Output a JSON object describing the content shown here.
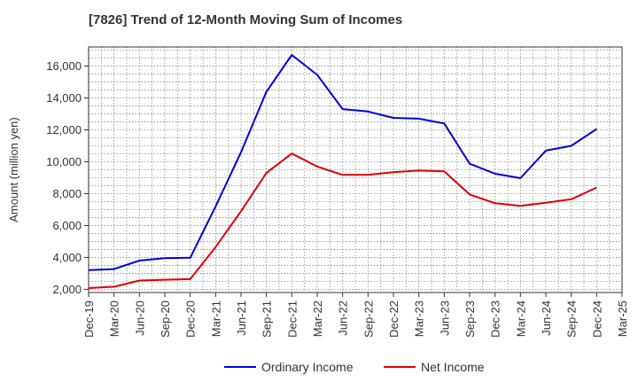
{
  "chart_data": {
    "type": "line",
    "title": "[7826]  Trend of 12-Month Moving Sum of Incomes",
    "xlabel": "",
    "ylabel": "Amount (million yen)",
    "ylim": [
      1800,
      17200
    ],
    "yticks": [
      2000,
      4000,
      6000,
      8000,
      10000,
      12000,
      14000,
      16000
    ],
    "ytick_labels": [
      "2,000",
      "4,000",
      "6,000",
      "8,000",
      "10,000",
      "12,000",
      "14,000",
      "16,000"
    ],
    "categories": [
      "Dec-19",
      "Mar-20",
      "Jun-20",
      "Sep-20",
      "Dec-20",
      "Mar-21",
      "Jun-21",
      "Sep-21",
      "Dec-21",
      "Mar-22",
      "Jun-22",
      "Sep-22",
      "Dec-22",
      "Mar-23",
      "Jun-23",
      "Sep-23",
      "Dec-23",
      "Mar-24",
      "Jun-24",
      "Sep-24",
      "Dec-24",
      "Mar-25"
    ],
    "grid": true,
    "legend_position": "bottom",
    "series": [
      {
        "name": "Ordinary Income",
        "color": "#0000dd",
        "values": [
          3200,
          3270,
          3800,
          3950,
          3980,
          7200,
          10600,
          14400,
          16700,
          15450,
          13300,
          13150,
          12750,
          12700,
          12400,
          9880,
          9250,
          8970,
          10700,
          11000,
          12050,
          null
        ]
      },
      {
        "name": "Net Income",
        "color": "#dd0000",
        "values": [
          2080,
          2160,
          2550,
          2600,
          2640,
          4650,
          6900,
          9300,
          10520,
          9700,
          9180,
          9180,
          9350,
          9450,
          9400,
          7950,
          7400,
          7230,
          7430,
          7650,
          8380,
          null
        ]
      }
    ]
  }
}
